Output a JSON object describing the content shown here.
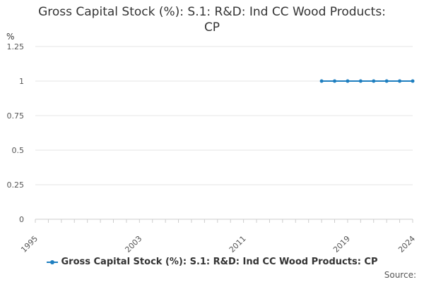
{
  "chart_data": {
    "type": "line",
    "title_lines": [
      "Gross Capital Stock (%): S.1: R&D: Ind CC Wood Products:",
      "CP"
    ],
    "ylabel": "%",
    "xlabel": "",
    "xlim": [
      1995,
      2024
    ],
    "ylim": [
      0,
      1.25
    ],
    "x_tick_labels": [
      "1995",
      "2003",
      "2011",
      "2019",
      "2024"
    ],
    "x_tick_values": [
      1995,
      2003,
      2011,
      2019,
      2024
    ],
    "y_tick_labels": [
      "0",
      "0.25",
      "0.5",
      "0.75",
      "1",
      "1.25"
    ],
    "y_tick_values": [
      0,
      0.25,
      0.5,
      0.75,
      1,
      1.25
    ],
    "grid": true,
    "legend_position": "bottom-center",
    "series": [
      {
        "name": "Gross Capital Stock (%): S.1: R&D: Ind CC Wood Products: CP",
        "color": "#1f7fc0",
        "x": [
          2017,
          2018,
          2019,
          2020,
          2021,
          2022,
          2023,
          2024
        ],
        "y": [
          1,
          1,
          1,
          1,
          1,
          1,
          1,
          1
        ]
      }
    ]
  },
  "source_label": "Source:"
}
